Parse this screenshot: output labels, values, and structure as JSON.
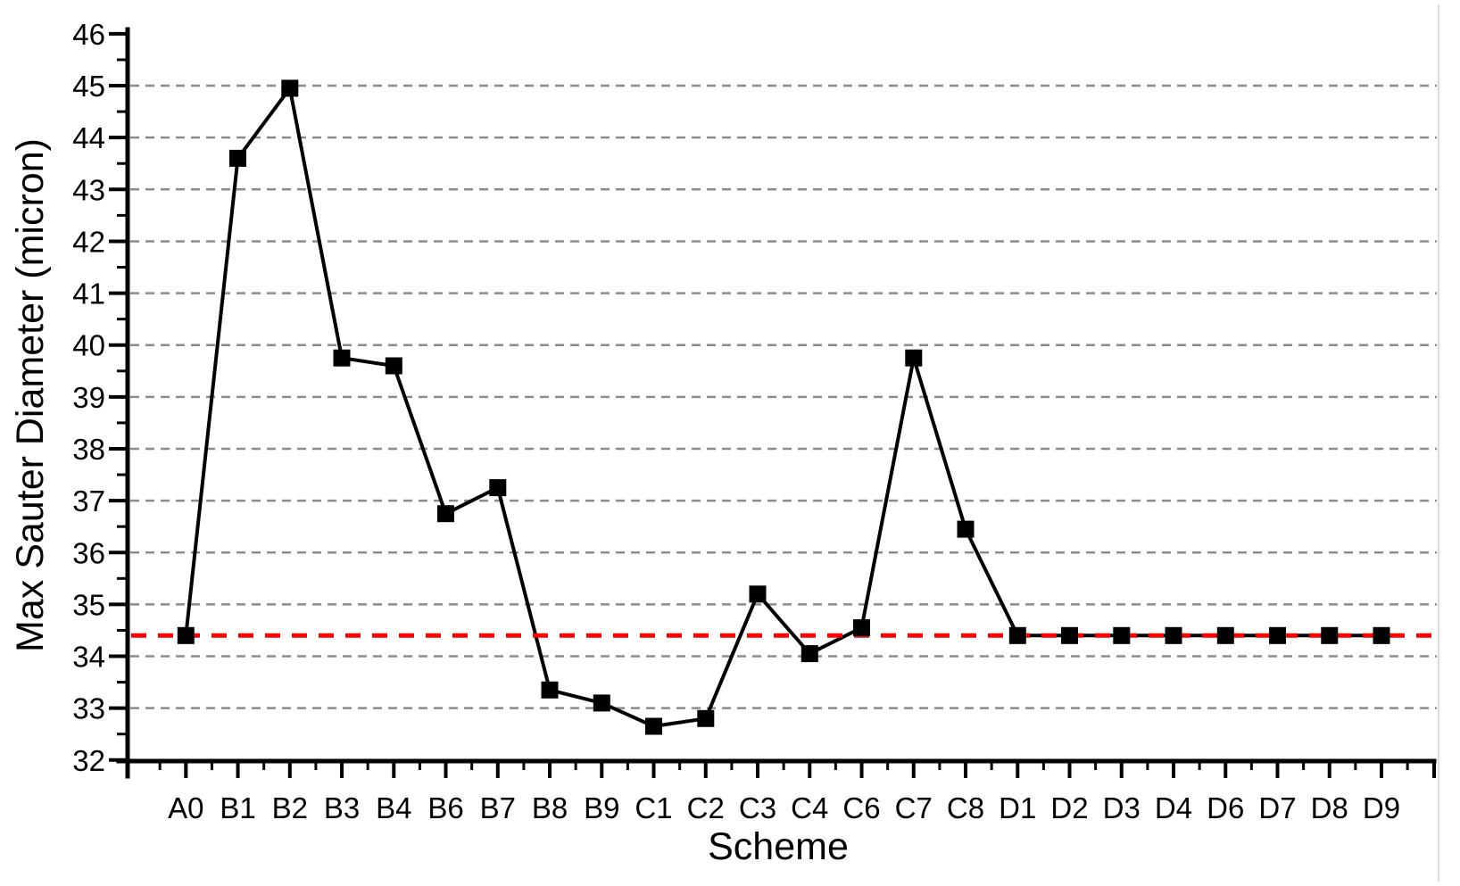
{
  "chart_data": {
    "type": "line",
    "title": "",
    "xlabel": "Scheme",
    "ylabel": "Max Sauter Diameter (micron)",
    "categories": [
      "A0",
      "B1",
      "B2",
      "B3",
      "B4",
      "B6",
      "B7",
      "B8",
      "B9",
      "C1",
      "C2",
      "C3",
      "C4",
      "C6",
      "C7",
      "C8",
      "D1",
      "D2",
      "D3",
      "D4",
      "D6",
      "D7",
      "D8",
      "D9"
    ],
    "series": [
      {
        "name": "Max Sauter Diameter",
        "marker": "filled-square",
        "color": "#000000",
        "values": [
          34.4,
          43.6,
          44.95,
          39.75,
          39.6,
          36.75,
          37.25,
          33.35,
          33.1,
          32.65,
          32.8,
          35.2,
          34.05,
          34.55,
          39.75,
          36.45,
          34.4,
          34.4,
          34.4,
          34.4,
          34.4,
          34.4,
          34.4,
          34.4
        ]
      }
    ],
    "reference_line": {
      "value": 34.4,
      "color": "#ff0000",
      "style": "dashed"
    },
    "ylim": [
      32,
      46
    ],
    "y_major_tick_step": 1,
    "y_minor_tick_step": 0.5,
    "y_tick_labels": [
      "32",
      "33",
      "34",
      "35",
      "36",
      "37",
      "38",
      "39",
      "40",
      "41",
      "42",
      "43",
      "44",
      "45",
      "46"
    ],
    "gridlines": {
      "horizontal": true,
      "style": "dashed",
      "color": "#8c8c8c"
    },
    "legend": "none",
    "marker_shape": "square",
    "line_color": "#000000"
  }
}
